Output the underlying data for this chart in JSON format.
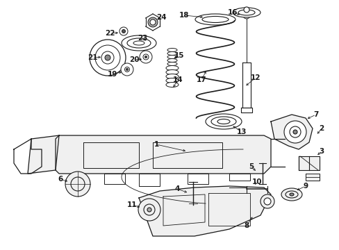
{
  "bg_color": "#ffffff",
  "fig_width": 4.89,
  "fig_height": 3.6,
  "dpi": 100,
  "title": "",
  "image_url": "target_embedded",
  "labels": {
    "positions_normalized": true
  }
}
